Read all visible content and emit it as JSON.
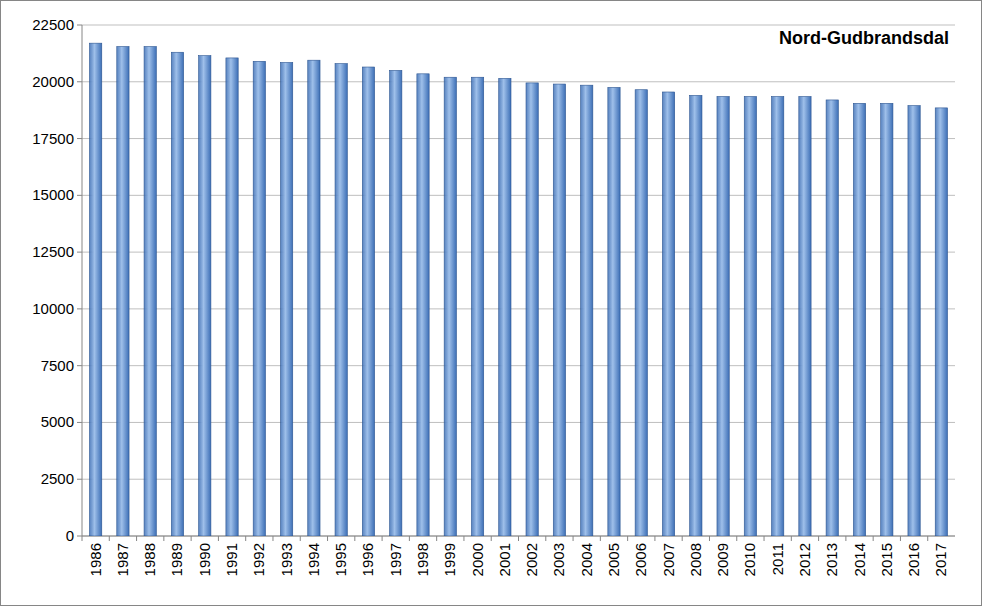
{
  "chart_data": {
    "type": "bar",
    "title": "Nord-Gudbrandsdal",
    "categories": [
      "1986",
      "1987",
      "1988",
      "1989",
      "1990",
      "1991",
      "1992",
      "1993",
      "1994",
      "1995",
      "1996",
      "1997",
      "1998",
      "1999",
      "2000",
      "2001",
      "2002",
      "2003",
      "2004",
      "2005",
      "2006",
      "2007",
      "2008",
      "2009",
      "2010",
      "2011",
      "2012",
      "2013",
      "2014",
      "2015",
      "2016",
      "2017"
    ],
    "values": [
      21700,
      21550,
      21550,
      21300,
      21150,
      21050,
      20900,
      20850,
      20950,
      20800,
      20650,
      20500,
      20350,
      20200,
      20200,
      20150,
      19950,
      19900,
      19850,
      19750,
      19650,
      19550,
      19400,
      19350,
      19350,
      19350,
      19350,
      19200,
      19050,
      19050,
      18950,
      18850
    ],
    "color": "#3d6fb6",
    "ylim": [
      0,
      22500
    ],
    "yticks": [
      0,
      2500,
      5000,
      7500,
      10000,
      12500,
      15000,
      17500,
      20000,
      22500
    ],
    "grid": true
  }
}
